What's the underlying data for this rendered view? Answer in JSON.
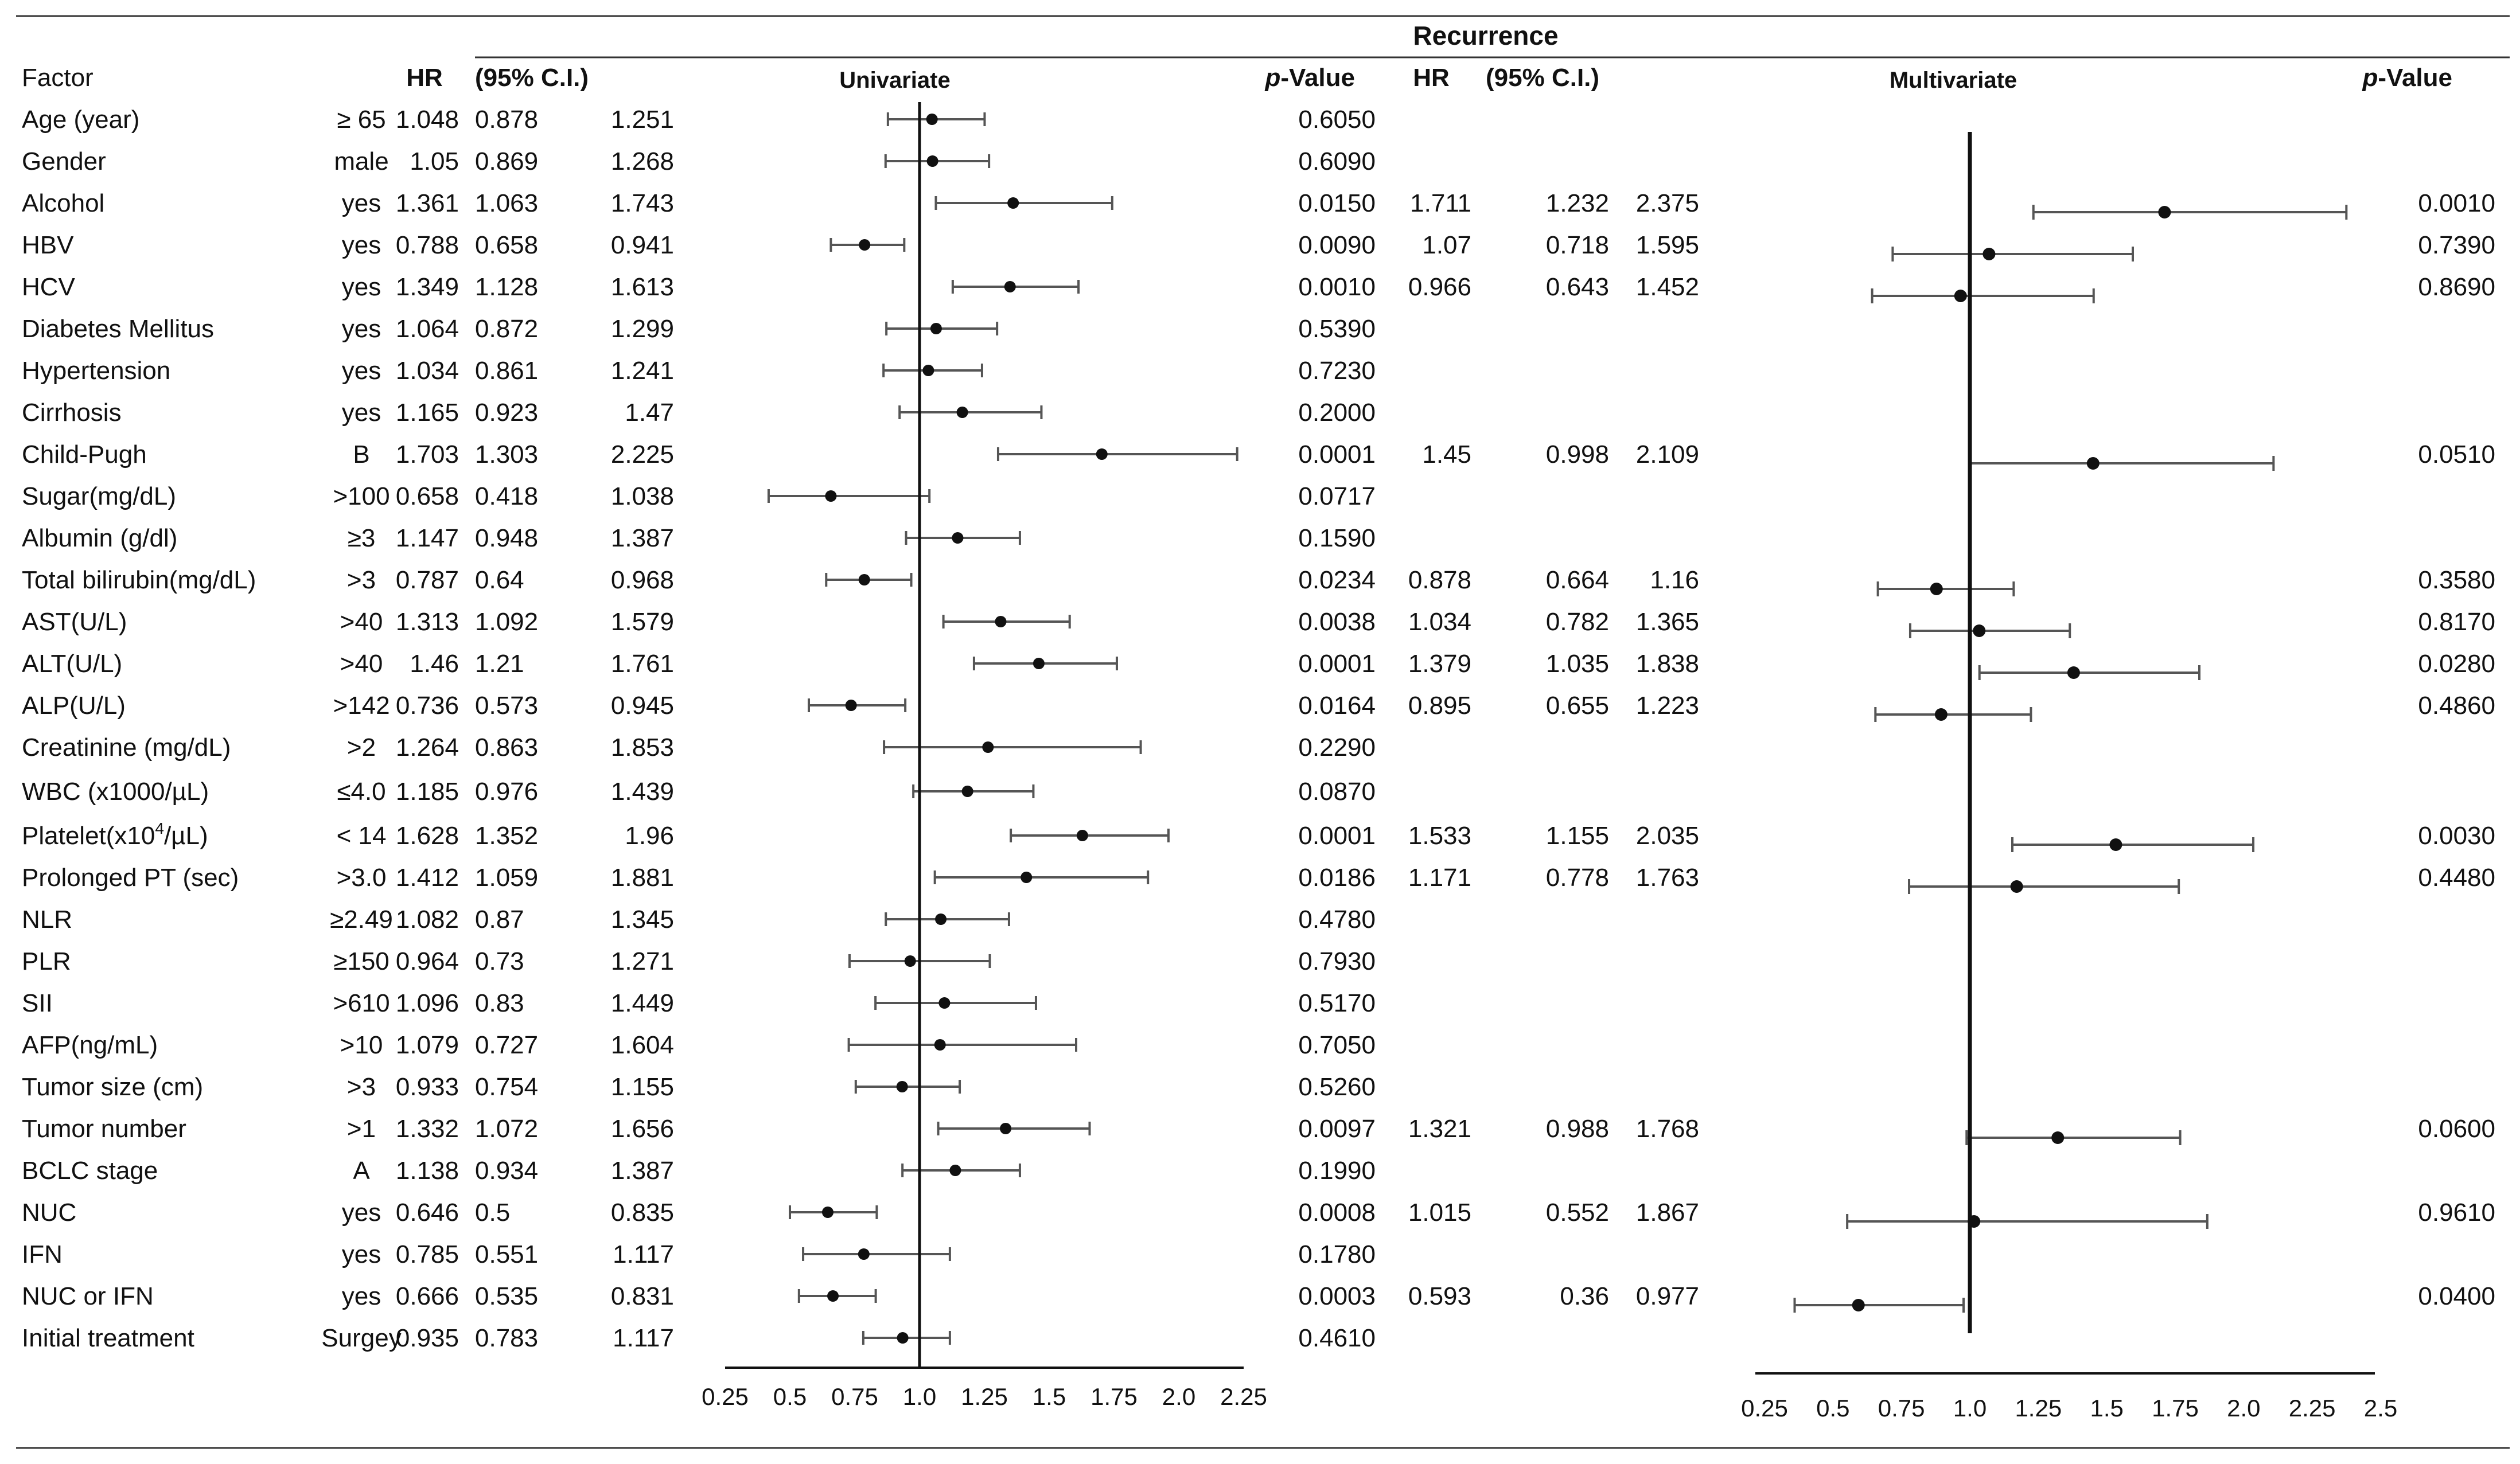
{
  "chart_data": {
    "type": "forest",
    "title": "Recurrence",
    "columns": {
      "factor": "Factor",
      "hr": "HR",
      "ci": "(95% C.I.)",
      "univariate": "Univariate",
      "p_italic": "p",
      "p_rest": "-Value",
      "hr2": "HR",
      "ci2": "(95% C.I.)",
      "multivariate": "Multivariate",
      "p2_italic": "p",
      "p2_rest": "-Value"
    },
    "univariate_axis": {
      "ticks": [
        "0.25",
        "0.5",
        "0.75",
        "1.0",
        "1.25",
        "1.5",
        "1.75",
        "2.0",
        "2.25"
      ],
      "tick_values": [
        0.25,
        0.5,
        0.75,
        1.0,
        1.25,
        1.5,
        1.75,
        2.0,
        2.25
      ],
      "reference": 1.0
    },
    "multivariate_axis": {
      "ticks": [
        "0.25",
        "0.5",
        "0.75",
        "1.0",
        "1.25",
        "1.5",
        "1.75",
        "2.0",
        "2.25",
        "2.5"
      ],
      "tick_values": [
        0.25,
        0.5,
        0.75,
        1.0,
        1.25,
        1.5,
        1.75,
        2.0,
        2.25,
        2.5
      ],
      "reference": 1.0
    },
    "rows": [
      {
        "factor": "Age (year)",
        "level": "≥ 65",
        "hr": "1.048",
        "lo": "0.878",
        "hi": "1.251",
        "p": "0.6050"
      },
      {
        "factor": "Gender",
        "level": "male",
        "hr": "1.05",
        "lo": "0.869",
        "hi": "1.268",
        "p": "0.6090"
      },
      {
        "factor": "Alcohol",
        "level": "yes",
        "hr": "1.361",
        "lo": "1.063",
        "hi": "1.743",
        "p": "0.0150",
        "m": {
          "hr": "1.711",
          "lo": "1.232",
          "hi": "2.375",
          "p": "0.0010"
        }
      },
      {
        "factor": "HBV",
        "level": "yes",
        "hr": "0.788",
        "lo": "0.658",
        "hi": "0.941",
        "p": "0.0090",
        "m": {
          "hr": "1.07",
          "lo": "0.718",
          "hi": "1.595",
          "p": "0.7390"
        }
      },
      {
        "factor": "HCV",
        "level": "yes",
        "hr": "1.349",
        "lo": "1.128",
        "hi": "1.613",
        "p": "0.0010",
        "m": {
          "hr": "0.966",
          "lo": "0.643",
          "hi": "1.452",
          "p": "0.8690"
        }
      },
      {
        "factor": "Diabetes Mellitus",
        "level": "yes",
        "hr": "1.064",
        "lo": "0.872",
        "hi": "1.299",
        "p": "0.5390"
      },
      {
        "factor": "Hypertension",
        "level": "yes",
        "hr": "1.034",
        "lo": "0.861",
        "hi": "1.241",
        "p": "0.7230"
      },
      {
        "factor": "Cirrhosis",
        "level": "yes",
        "hr": "1.165",
        "lo": "0.923",
        "hi": "1.47",
        "p": "0.2000"
      },
      {
        "factor": "Child-Pugh",
        "level": "B",
        "hr": "1.703",
        "lo": "1.303",
        "hi": "2.225",
        "p": "0.0001",
        "m": {
          "hr": "1.45",
          "lo": "0.998",
          "hi": "2.109",
          "p": "0.0510"
        }
      },
      {
        "factor": "Sugar(mg/dL)",
        "level": ">100",
        "hr": "0.658",
        "lo": "0.418",
        "hi": "1.038",
        "p": "0.0717"
      },
      {
        "factor": "Albumin (g/dl)",
        "level": "≥3",
        "hr": "1.147",
        "lo": "0.948",
        "hi": "1.387",
        "p": "0.1590"
      },
      {
        "factor": "Total bilirubin(mg/dL)",
        "level": ">3",
        "hr": "0.787",
        "lo": "0.64",
        "hi": "0.968",
        "p": "0.0234",
        "m": {
          "hr": "0.878",
          "lo": "0.664",
          "hi": "1.16",
          "p": "0.3580"
        }
      },
      {
        "factor": "AST(U/L)",
        "level": ">40",
        "hr": "1.313",
        "lo": "1.092",
        "hi": "1.579",
        "p": "0.0038",
        "m": {
          "hr": "1.034",
          "lo": "0.782",
          "hi": "1.365",
          "p": "0.8170"
        }
      },
      {
        "factor": "ALT(U/L)",
        "level": ">40",
        "hr": "1.46",
        "lo": "1.21",
        "hi": "1.761",
        "p": "0.0001",
        "m": {
          "hr": "1.379",
          "lo": "1.035",
          "hi": "1.838",
          "p": "0.0280"
        }
      },
      {
        "factor": "ALP(U/L)",
        "level": ">142",
        "hr": "0.736",
        "lo": "0.573",
        "hi": "0.945",
        "p": "0.0164",
        "m": {
          "hr": "0.895",
          "lo": "0.655",
          "hi": "1.223",
          "p": "0.4860"
        }
      },
      {
        "factor": "Creatinine (mg/dL)",
        "level": ">2",
        "hr": "1.264",
        "lo": "0.863",
        "hi": "1.853",
        "p": "0.2290"
      },
      {
        "factor": "WBC (x1000/µL)",
        "level": "≤4.0",
        "hr": "1.185",
        "lo": "0.976",
        "hi": "1.439",
        "p": "0.0870"
      },
      {
        "factor": "Platelet(x10",
        "factor_sup": "4",
        "factor_tail": "/µL)",
        "level": "< 14",
        "hr": "1.628",
        "lo": "1.352",
        "hi": "1.96",
        "p": "0.0001",
        "m": {
          "hr": "1.533",
          "lo": "1.155",
          "hi": "2.035",
          "p": "0.0030"
        }
      },
      {
        "factor": "Prolonged PT (sec)",
        "level": ">3.0",
        "hr": "1.412",
        "lo": "1.059",
        "hi": "1.881",
        "p": "0.0186",
        "m": {
          "hr": "1.171",
          "lo": "0.778",
          "hi": "1.763",
          "p": "0.4480"
        }
      },
      {
        "factor": "NLR",
        "level": "≥2.49",
        "hr": "1.082",
        "lo": "0.87",
        "hi": "1.345",
        "p": "0.4780"
      },
      {
        "factor": "PLR",
        "level": "≥150",
        "hr": "0.964",
        "lo": "0.73",
        "hi": "1.271",
        "p": "0.7930"
      },
      {
        "factor": "SII",
        "level": ">610",
        "hr": "1.096",
        "lo": "0.83",
        "hi": "1.449",
        "p": "0.5170"
      },
      {
        "factor": "AFP(ng/mL)",
        "level": ">10",
        "hr": "1.079",
        "lo": "0.727",
        "hi": "1.604",
        "p": "0.7050"
      },
      {
        "factor": "Tumor size (cm)",
        "level": ">3",
        "hr": "0.933",
        "lo": "0.754",
        "hi": "1.155",
        "p": "0.5260"
      },
      {
        "factor": "Tumor number",
        "level": ">1",
        "hr": "1.332",
        "lo": "1.072",
        "hi": "1.656",
        "p": "0.0097",
        "m": {
          "hr": "1.321",
          "lo": "0.988",
          "hi": "1.768",
          "p": "0.0600"
        }
      },
      {
        "factor": "BCLC stage",
        "level": "A",
        "hr": "1.138",
        "lo": "0.934",
        "hi": "1.387",
        "p": "0.1990"
      },
      {
        "factor": "NUC",
        "level": "yes",
        "hr": "0.646",
        "lo": "0.5",
        "hi": "0.835",
        "p": "0.0008",
        "m": {
          "hr": "1.015",
          "lo": "0.552",
          "hi": "1.867",
          "p": "0.9610"
        }
      },
      {
        "factor": "IFN",
        "level": "yes",
        "hr": "0.785",
        "lo": "0.551",
        "hi": "1.117",
        "p": "0.1780"
      },
      {
        "factor": "NUC or IFN",
        "level": "yes",
        "hr": "0.666",
        "lo": "0.535",
        "hi": "0.831",
        "p": "0.0003",
        "m": {
          "hr": "0.593",
          "lo": "0.36",
          "hi": "0.977",
          "p": "0.0400"
        }
      },
      {
        "factor": "Initial treatment",
        "level": "Surgey",
        "hr": "0.935",
        "lo": "0.783",
        "hi": "1.117",
        "p": "0.4610"
      }
    ]
  }
}
